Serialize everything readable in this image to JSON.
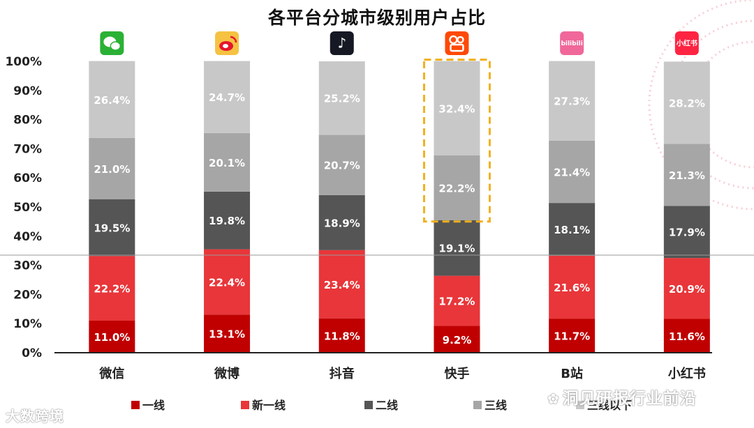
{
  "chart_data": {
    "type": "bar",
    "stacked": true,
    "title": "各平台分城市级别用户占比",
    "categories": [
      "微信",
      "微博",
      "抖音",
      "快手",
      "B站",
      "小红书"
    ],
    "y_ticks": [
      "0%",
      "10%",
      "20%",
      "30%",
      "40%",
      "50%",
      "60%",
      "70%",
      "80%",
      "90%",
      "100%"
    ],
    "ylim": [
      0,
      100
    ],
    "grid": false,
    "legend_position": "bottom",
    "series": [
      {
        "name": "一线",
        "color": "#c00000",
        "values": [
          11.0,
          13.1,
          11.8,
          9.2,
          11.7,
          11.6
        ],
        "labels": [
          "11.0%",
          "13.1%",
          "11.8%",
          "9.2%",
          "11.7%",
          "11.6%"
        ]
      },
      {
        "name": "新一线",
        "color": "#e8363a",
        "values": [
          22.2,
          22.4,
          23.4,
          17.2,
          21.6,
          20.9
        ],
        "labels": [
          "22.2%",
          "22.4%",
          "23.4%",
          "17.2%",
          "21.6%",
          "20.9%"
        ]
      },
      {
        "name": "二线",
        "color": "#555555",
        "values": [
          19.5,
          19.8,
          18.9,
          19.1,
          18.1,
          17.9
        ],
        "labels": [
          "19.5%",
          "19.8%",
          "18.9%",
          "19.1%",
          "18.1%",
          "17.9%"
        ]
      },
      {
        "name": "三线",
        "color": "#a6a6a6",
        "values": [
          21.0,
          20.1,
          20.7,
          22.2,
          21.4,
          21.3
        ],
        "labels": [
          "21.0%",
          "20.1%",
          "20.7%",
          "22.2%",
          "21.4%",
          "21.3%"
        ]
      },
      {
        "name": "三线以下",
        "color": "#c8c8c8",
        "values": [
          26.4,
          24.7,
          25.2,
          32.4,
          27.3,
          28.2
        ],
        "labels": [
          "26.4%",
          "24.7%",
          "25.2%",
          "32.4%",
          "27.3%",
          "28.2%"
        ]
      }
    ],
    "highlight": {
      "category": "快手",
      "series": [
        "三线",
        "三线以下"
      ],
      "style": "dashed",
      "color": "#f2b01e"
    }
  },
  "platform_icons": [
    {
      "name": "wechat-icon",
      "bg": "#2bb135",
      "text": "",
      "fg": "#ffffff"
    },
    {
      "name": "weibo-icon",
      "bg": "#f5c242",
      "text": "",
      "fg": "#e6162d"
    },
    {
      "name": "douyin-icon",
      "bg": "#161823",
      "text": "♪",
      "fg": "#ffffff"
    },
    {
      "name": "kuaishou-icon",
      "bg": "#ff4906",
      "text": "",
      "fg": "#ffffff"
    },
    {
      "name": "bilibili-icon",
      "bg": "#f0679a",
      "text": "bilibili",
      "fg": "#ffffff"
    },
    {
      "name": "xiaohongshu-icon",
      "bg": "#ff2442",
      "text": "小红书",
      "fg": "#ffffff"
    }
  ],
  "watermark_left": "大数跨境",
  "watermark_right": "洞见研报行业前沿"
}
